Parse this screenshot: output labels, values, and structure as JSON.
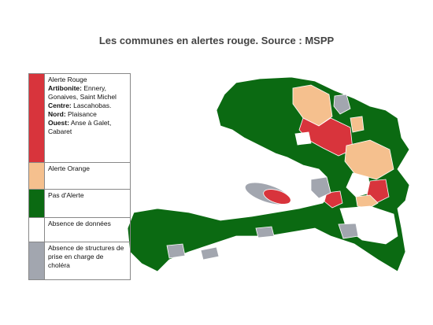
{
  "title": "Les communes en alertes rouge. Source : MSPP",
  "legend": [
    {
      "color": "#d8343c",
      "label": "Alerte Rouge",
      "details": [
        {
          "department": "Artibonite:",
          "communes": "Ennery, Gonaives, Saint Michel"
        },
        {
          "department": "Centre:",
          "communes": "Lascahobas."
        },
        {
          "department": "Nord:",
          "communes": "Plaisance"
        },
        {
          "department": "Ouest:",
          "communes": "Anse à Galet, Cabaret"
        }
      ]
    },
    {
      "color": "#f5c08e",
      "label": "Alerte Orange"
    },
    {
      "color": "#0b6a12",
      "label": "Pas d'Alerte"
    },
    {
      "color": "#ffffff",
      "label": "Absence de données"
    },
    {
      "color": "#a2a6af",
      "label": "Absence de structures de prise en charge de choléra"
    }
  ]
}
